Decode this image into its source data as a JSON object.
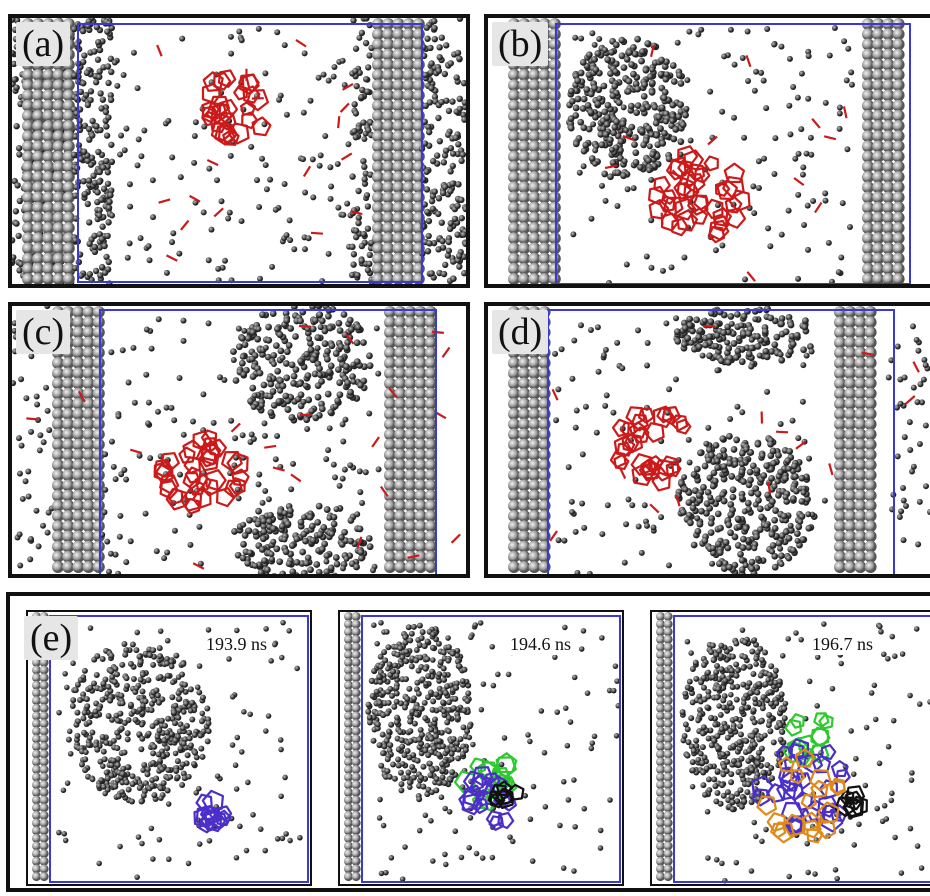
{
  "panels": [
    {
      "id": "a",
      "label": "(a)"
    },
    {
      "id": "b",
      "label": "(b)"
    },
    {
      "id": "c",
      "label": "(c)"
    },
    {
      "id": "d",
      "label": "(d)"
    }
  ],
  "panel_e": {
    "label": "(e)",
    "frames": [
      {
        "time": "193.9 ns"
      },
      {
        "time": "194.6 ns"
      },
      {
        "time": "196.7 ns"
      }
    ]
  },
  "colors": {
    "wall": "#9a9a9a",
    "gas": "#555555",
    "cluster": "#cc1a1a",
    "box": "#3a3ad0",
    "cage_purple": "#4b2fc9",
    "cage_green": "#2dc92d",
    "cage_black": "#111111",
    "cage_orange": "#e08a1a"
  }
}
